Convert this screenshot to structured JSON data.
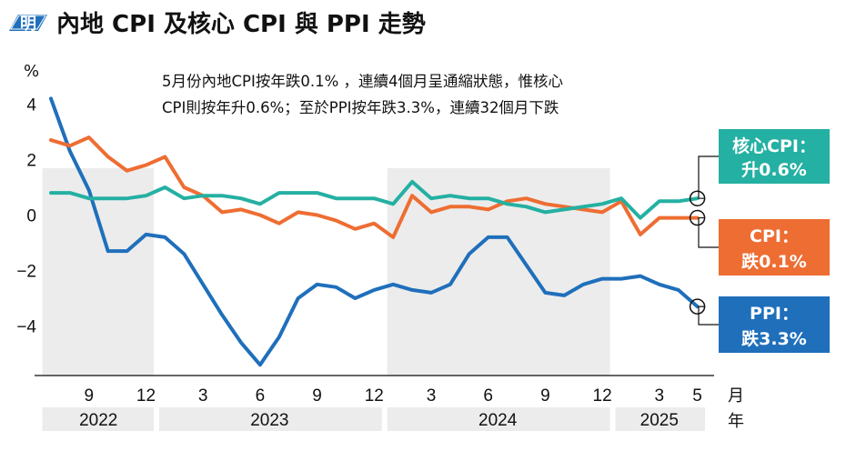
{
  "header": {
    "logo_text": "明",
    "title": "內地 CPI 及核心 CPI 與 PPI 走勢"
  },
  "annotation": {
    "line1": "5月份內地CPI按年跌0.1% ，連續4個月呈通縮狀態，惟核心",
    "line2": "CPI則按年升0.6%；至於PPI按年跌3.3%，連續32個月下跌"
  },
  "colors": {
    "core_cpi": "#24b0a2",
    "cpi": "#ee6d32",
    "ppi": "#1f6fbb",
    "band": "#ececec",
    "brand": "#1f6fbb"
  },
  "callouts": {
    "core_cpi": {
      "line1": "核心CPI：",
      "line2": "升0.6%"
    },
    "cpi": {
      "line1": "CPI：",
      "line2": "跌0.1%"
    },
    "ppi": {
      "line1": "PPI：",
      "line2": "跌3.3%"
    }
  },
  "chart_data": {
    "type": "line",
    "y_unit": "%",
    "ylim": [
      -5.9,
      5.5
    ],
    "yticks": [
      4,
      2,
      0,
      -2,
      -4
    ],
    "ytick_labels": [
      "4",
      "2",
      "0",
      "−2",
      "−4"
    ],
    "x_start": "2022-07",
    "x_end": "2025-05",
    "month_label": "月",
    "year_label": "年",
    "x_ticks": [
      {
        "month": "2022-09",
        "label": "9"
      },
      {
        "month": "2022-12",
        "label": "12"
      },
      {
        "month": "2023-03",
        "label": "3"
      },
      {
        "month": "2023-06",
        "label": "6"
      },
      {
        "month": "2023-09",
        "label": "9"
      },
      {
        "month": "2023-12",
        "label": "12"
      },
      {
        "month": "2024-03",
        "label": "3"
      },
      {
        "month": "2024-06",
        "label": "6"
      },
      {
        "month": "2024-09",
        "label": "9"
      },
      {
        "month": "2024-12",
        "label": "12"
      },
      {
        "month": "2025-03",
        "label": "3"
      },
      {
        "month": "2025-05",
        "label": "5"
      }
    ],
    "years": [
      {
        "label": "2022",
        "from": "2022-07",
        "to": "2022-12"
      },
      {
        "label": "2023",
        "from": "2023-01",
        "to": "2023-12"
      },
      {
        "label": "2024",
        "from": "2024-01",
        "to": "2024-12"
      },
      {
        "label": "2025",
        "from": "2025-01",
        "to": "2025-05"
      }
    ],
    "x": [
      "2022-07",
      "2022-08",
      "2022-09",
      "2022-10",
      "2022-11",
      "2022-12",
      "2023-01",
      "2023-02",
      "2023-03",
      "2023-04",
      "2023-05",
      "2023-06",
      "2023-07",
      "2023-08",
      "2023-09",
      "2023-10",
      "2023-11",
      "2023-12",
      "2024-01",
      "2024-02",
      "2024-03",
      "2024-04",
      "2024-05",
      "2024-06",
      "2024-07",
      "2024-08",
      "2024-09",
      "2024-10",
      "2024-11",
      "2024-12",
      "2025-01",
      "2025-02",
      "2025-03",
      "2025-04",
      "2025-05"
    ],
    "series": [
      {
        "key": "ppi",
        "values": [
          4.2,
          2.3,
          0.9,
          -1.3,
          -1.3,
          -0.7,
          -0.8,
          -1.4,
          -2.5,
          -3.6,
          -4.6,
          -5.4,
          -4.4,
          -3.0,
          -2.5,
          -2.6,
          -3.0,
          -2.7,
          -2.5,
          -2.7,
          -2.8,
          -2.5,
          -1.4,
          -0.8,
          -0.8,
          -1.8,
          -2.8,
          -2.9,
          -2.5,
          -2.3,
          -2.3,
          -2.2,
          -2.5,
          -2.7,
          -3.3
        ]
      },
      {
        "key": "cpi",
        "values": [
          2.7,
          2.5,
          2.8,
          2.1,
          1.6,
          1.8,
          2.1,
          1.0,
          0.7,
          0.1,
          0.2,
          0.0,
          -0.3,
          0.1,
          0.0,
          -0.2,
          -0.5,
          -0.3,
          -0.8,
          0.7,
          0.1,
          0.3,
          0.3,
          0.2,
          0.5,
          0.6,
          0.4,
          0.3,
          0.2,
          0.1,
          0.5,
          -0.7,
          -0.1,
          -0.1,
          -0.1
        ]
      },
      {
        "key": "core_cpi",
        "values": [
          0.8,
          0.8,
          0.6,
          0.6,
          0.6,
          0.7,
          1.0,
          0.6,
          0.7,
          0.7,
          0.6,
          0.4,
          0.8,
          0.8,
          0.8,
          0.6,
          0.6,
          0.6,
          0.4,
          1.2,
          0.6,
          0.7,
          0.6,
          0.6,
          0.4,
          0.3,
          0.1,
          0.2,
          0.3,
          0.4,
          0.6,
          -0.1,
          0.5,
          0.5,
          0.6
        ]
      }
    ]
  }
}
